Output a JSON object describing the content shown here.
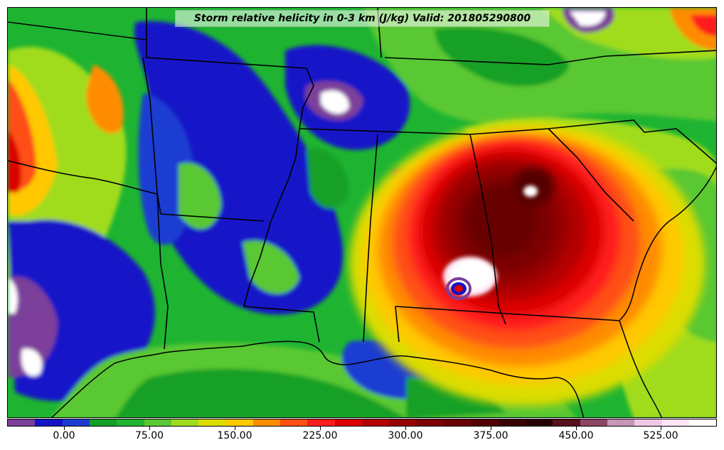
{
  "title": "Storm relative helicity in 0-3 km (J/kg) Valid: 201805290800",
  "colorbar": {
    "colors": [
      "#7b3f9a",
      "#1414c8",
      "#1e3cd2",
      "#14a028",
      "#1eb432",
      "#5ac832",
      "#a0dc1e",
      "#dcdc00",
      "#ffc800",
      "#ff8c00",
      "#ff5014",
      "#ff1e1e",
      "#dc0000",
      "#b40000",
      "#960000",
      "#7d0000",
      "#690000",
      "#550000",
      "#3c0000",
      "#280000",
      "#5a0f1e",
      "#8c4664",
      "#c896b4",
      "#f0c8e6",
      "#ffe6f5",
      "#ffffff"
    ],
    "tick_labels": [
      "0.00",
      "75.00",
      "150.00",
      "225.00",
      "300.00",
      "375.00",
      "450.00",
      "525.00"
    ]
  },
  "map": {
    "field": "Storm relative helicity 0-3 km",
    "units": "J/kg",
    "valid": "201805290800",
    "region": "Southeastern United States and northern Gulf of Mexico",
    "features": [
      "state-borders",
      "coastline",
      "tropical-cyclone-center"
    ]
  }
}
